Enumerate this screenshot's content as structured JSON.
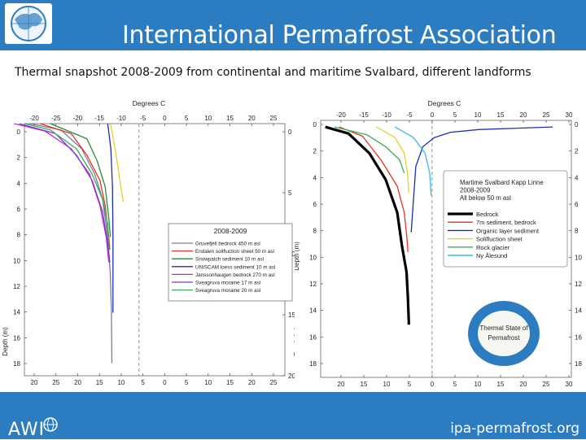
{
  "header": {
    "title": "International Permafrost Association",
    "subtitle": "Thermal snapshot 2008-2009 from  continental  and maritime Svalbard,  different  landforms"
  },
  "footer": {
    "brand": "AWI",
    "link": "ipa-permafrost.org"
  },
  "colors": {
    "header_bg": "#2c7cc1",
    "bedrock": "#000000",
    "red": "#e53228",
    "blue": "#1f2fb0",
    "yellow": "#e8cf2a",
    "green": "#3caa5a",
    "cyan": "#37b9e0",
    "magenta": "#c02cc8",
    "purple": "#7a3ad0",
    "gray": "#7a7aa0",
    "darkgreen": "#2d8a3a"
  },
  "chart_data": [
    {
      "type": "line",
      "title": "",
      "xlabel": "Degrees C",
      "ylabel": "Depth (m)",
      "xlim": [
        -22,
        28
      ],
      "ylim": [
        20,
        0
      ],
      "top_ticks": [
        "-20",
        "-25",
        "-20",
        "-15",
        "-10",
        "-5",
        "0",
        "5",
        "10",
        "15",
        "20",
        "25"
      ],
      "bottom_ticks": [
        "20",
        "25",
        "20",
        "15",
        "10",
        "5",
        "0",
        "5",
        "10",
        "15",
        "20",
        "25"
      ],
      "y_ticks_left": [
        "0",
        "2",
        "4",
        "6",
        "8",
        "10",
        "12",
        "14",
        "16",
        "18"
      ],
      "y_ticks_right": [
        "0",
        "5",
        "10",
        "15",
        "20"
      ],
      "legend_title": "2008-2009",
      "legend_position": "right",
      "series": [
        {
          "name": "Gruvefjell bedrock 450 m asl",
          "color": "#7a7aa0",
          "x": [
            -21,
            -15,
            -11,
            -8.5,
            -7,
            -6,
            -5.5,
            -5.3,
            -5.2
          ],
          "y": [
            0,
            0.5,
            2,
            4,
            6,
            9,
            12,
            15,
            19
          ]
        },
        {
          "name": "Endalen solifluction sheet 50 m asl",
          "color": "#e53228",
          "x": [
            -19,
            -13,
            -10,
            -7.5,
            -6.5,
            -5.8,
            -5.6
          ],
          "y": [
            0,
            0.8,
            2.5,
            4.5,
            6.5,
            9,
            10
          ]
        },
        {
          "name": "Snowpatch sediment 10 m asl",
          "color": "#2d8a3a",
          "x": [
            -17,
            -10,
            -8,
            -6.5,
            -5.8,
            -5.5
          ],
          "y": [
            0,
            1.2,
            3,
            5,
            7.5,
            9
          ]
        },
        {
          "name": "UNISCAM loess sediment 10 m asl",
          "color": "#1f2fb0",
          "x": [
            -6,
            -5.4,
            -5.1,
            -5.0,
            -5.0
          ],
          "y": [
            0,
            2,
            5,
            9,
            15
          ]
        },
        {
          "name": "Janssonhaugen bedrock 270 m asl",
          "color": "#c02cc8",
          "x": [
            -24,
            -18,
            -13,
            -9.5,
            -7.5,
            -6.3,
            -5.8
          ],
          "y": [
            0,
            0.6,
            2,
            4,
            6.5,
            9,
            11
          ]
        },
        {
          "name": "Sveagruva moraine 17 m asl",
          "color": "#7a3ad0",
          "x": [
            -23,
            -16,
            -12,
            -9,
            -7,
            -6,
            -5.6
          ],
          "y": [
            0,
            0.8,
            2.5,
            4.5,
            7,
            9.5,
            11
          ]
        },
        {
          "name": "Sveagruva moraine 20 m asl",
          "color": "#3caa5a",
          "x": [
            -22,
            -17,
            -12,
            -9,
            -7,
            -6,
            -5.7
          ],
          "y": [
            0,
            0.5,
            2,
            4,
            6,
            8,
            10
          ]
        },
        {
          "name": "",
          "color": "#e8cf2a",
          "x": [
            -5.5,
            -5.0,
            -4.2,
            -3.5,
            -3.0
          ],
          "y": [
            0,
            1,
            3,
            5,
            6.2
          ]
        }
      ]
    },
    {
      "type": "line",
      "title": "",
      "xlabel": "Degrees C",
      "ylabel": "Depth (m)",
      "xlim": [
        -24,
        30
      ],
      "ylim": [
        19,
        -0.5
      ],
      "top_ticks": [
        "-20",
        "-15",
        "-10",
        "-5",
        "0",
        "5",
        "10",
        "15",
        "20",
        "25",
        "30"
      ],
      "bottom_ticks": [
        "20",
        "15",
        "10",
        "5",
        "0",
        "5",
        "10",
        "15",
        "20",
        "25",
        "30"
      ],
      "y_ticks_left": [
        "0",
        "2",
        "4",
        "6",
        "8",
        "10",
        "12",
        "14",
        "16",
        "18"
      ],
      "y_ticks_right": [
        "0",
        "2",
        "4",
        "6",
        "8",
        "10",
        "12",
        "14",
        "16",
        "18"
      ],
      "annotation_lines": [
        "Martime Svalbard Kapp Linne",
        "2008-2009",
        "All below 50 m asl"
      ],
      "legend_position": "right",
      "logo_lines": [
        "Thermal State of",
        "Permafrost"
      ],
      "series": [
        {
          "name": "Bedrock",
          "color": "#000000",
          "x": [
            -23,
            -18,
            -13.5,
            -10,
            -7.5,
            -6.5,
            -5.5,
            -5.2,
            -5.0
          ],
          "y": [
            0,
            0.5,
            2,
            4,
            6.5,
            9,
            11,
            13,
            15
          ]
        },
        {
          "name": "7m sediment, bedrock",
          "color": "#e53228",
          "x": [
            -20,
            -15,
            -11,
            -7.5,
            -6,
            -5.4,
            -5.2
          ],
          "y": [
            0,
            0.7,
            2.5,
            4.5,
            6.5,
            8.5,
            9.5
          ]
        },
        {
          "name": "Organic layer sediment",
          "color": "#1f2fb0",
          "x": [
            26,
            10,
            4,
            0.5,
            -2,
            -3.5,
            -4.5
          ],
          "y": [
            0,
            0.2,
            0.4,
            0.8,
            1.5,
            3,
            8
          ]
        },
        {
          "name": "Solifluction sheet",
          "color": "#e8cf2a",
          "x": [
            -12,
            -8,
            -6,
            -5.3,
            -5.0
          ],
          "y": [
            0,
            0.8,
            2,
            3.5,
            5
          ]
        },
        {
          "name": "Rock glacier",
          "color": "#3caa5a",
          "x": [
            -21,
            -14,
            -10,
            -7,
            -6
          ],
          "y": [
            0,
            0.6,
            1.5,
            2.5,
            3.5
          ]
        },
        {
          "name": "Ny Ålesund",
          "color": "#37b9e0",
          "x": [
            -8,
            -4,
            -1.5,
            -0.5,
            -0.2
          ],
          "y": [
            0,
            0.8,
            2,
            3.5,
            5.2
          ]
        }
      ]
    }
  ]
}
